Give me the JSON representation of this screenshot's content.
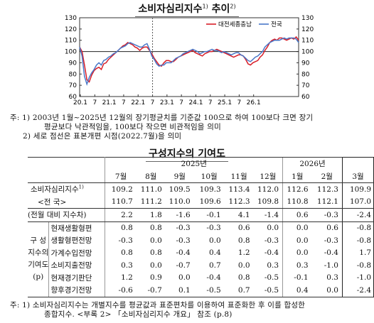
{
  "chart_title": {
    "main": "소비자심리지수",
    "sup1": "1)",
    "tail": " 추이",
    "sup2": "2)"
  },
  "chart_data": {
    "type": "line",
    "ylim": [
      60,
      130
    ],
    "yticks": [
      60,
      70,
      80,
      90,
      100,
      110,
      120,
      130
    ],
    "reference_line": 100,
    "vertical_marker": "22.7",
    "x_tick_labels": [
      "20.1",
      "7",
      "21.1",
      "7",
      "22.1",
      "7",
      "23.1",
      "7",
      "24.1",
      "7",
      "25.1",
      "7",
      "26.1"
    ],
    "series": [
      {
        "name": "대전세종충남",
        "color": "#d81e28",
        "values": [
          104,
          100,
          88,
          75,
          73,
          79,
          83,
          85,
          86,
          84,
          89,
          90,
          93,
          95,
          97,
          99,
          101,
          103,
          105,
          106,
          108,
          107,
          106,
          104,
          103,
          101,
          103,
          104,
          104,
          101,
          98,
          94,
          91,
          88,
          87,
          90,
          92,
          92,
          91,
          91,
          93,
          95,
          96,
          97,
          98,
          99,
          100,
          101,
          99,
          98,
          97,
          96,
          98,
          99,
          100,
          100,
          101,
          102,
          101,
          100,
          99,
          98,
          97,
          96,
          95,
          96,
          97,
          97,
          96,
          93,
          89,
          88,
          90,
          91,
          92,
          95,
          97,
          101,
          104,
          108,
          110,
          111,
          110,
          112,
          112,
          111,
          110,
          111,
          112,
          111,
          113,
          110
        ]
      },
      {
        "name": "전국",
        "color": "#4a78c8",
        "values": [
          104,
          96,
          78,
          71,
          77,
          81,
          84,
          88,
          90,
          88,
          92,
          93,
          95,
          96,
          98,
          99,
          101,
          103,
          104,
          105,
          107,
          108,
          107,
          106,
          105,
          104,
          104,
          106,
          107,
          102,
          96,
          93,
          89,
          87,
          88,
          88,
          90,
          90,
          90,
          92,
          94,
          95,
          96,
          98,
          99,
          100,
          101,
          102,
          101,
          100,
          98,
          99,
          100,
          100,
          101,
          102,
          101,
          101,
          100,
          99,
          100,
          99,
          98,
          97,
          98,
          99,
          99,
          97,
          96,
          94,
          92,
          91,
          93,
          95,
          96,
          98,
          100,
          104,
          106,
          108,
          109,
          110,
          110,
          110,
          111,
          112,
          111,
          112,
          112,
          112,
          111,
          108
        ]
      }
    ]
  },
  "notes": {
    "n1a": "주: 1) 2003년 1월~2025년 12월의 장기평균치를 기준값 100으로 하여 100보다 크면 장기",
    "n1b": "평균보다 낙관적임을, 100보다 작으면 비관적임을 의미",
    "n2": "2) 세로 점선은 표본개편 시점(2022.7월)을 의미"
  },
  "table_title": "구성지수의 기여도",
  "table": {
    "year1": "2025년",
    "year2": "2026년",
    "months": [
      "7월",
      "8월",
      "9월",
      "10월",
      "11월",
      "12월",
      "1월",
      "2월",
      "3월"
    ],
    "csi_label": "소비자심리지수",
    "csi_sup": "1)",
    "region_label": "<전   국>",
    "regional_values": [
      "109.2",
      "111.0",
      "109.5",
      "109.3",
      "113.4",
      "112.0",
      "112.6",
      "112.3",
      "109.9"
    ],
    "national_values": [
      "110.7",
      "111.2",
      "110.0",
      "109.6",
      "112.3",
      "109.8",
      "110.8",
      "112.1",
      "107.0"
    ],
    "change_label": "(전월 대비 지수차)",
    "change_values": [
      "2.2",
      "1.8",
      "-1.6",
      "-0.1",
      "4.1",
      "-1.4",
      "0.6",
      "-0.3",
      "-2.4"
    ],
    "side_label": [
      "구  성",
      "지수의",
      "기여도",
      "(p)"
    ],
    "components": [
      {
        "label": "현재생활형편",
        "values": [
          "0.8",
          "0.8",
          "-0.3",
          "-0.3",
          "0.6",
          "0.0",
          "0.0",
          "0.6",
          "-0.8"
        ]
      },
      {
        "label": "생활형편전망",
        "values": [
          "-0.3",
          "0.0",
          "-0.3",
          "0.0",
          "0.8",
          "-0.3",
          "0.0",
          "-0.3",
          "-0.8"
        ]
      },
      {
        "label": "가계수입전망",
        "values": [
          "0.8",
          "0.8",
          "-0.4",
          "0.4",
          "1.2",
          "-0.4",
          "0.0",
          "-0.4",
          "1.7"
        ]
      },
      {
        "label": "소비지출전망",
        "values": [
          "0.3",
          "0.0",
          "-0.7",
          "0.7",
          "0.0",
          "0.3",
          "0.3",
          "-1.0",
          "-0.8"
        ]
      },
      {
        "label": "현재경기판단",
        "values": [
          "1.2",
          "0.9",
          "0.0",
          "-0.4",
          "0.8",
          "-0.5",
          "-0.1",
          "0.3",
          "-1.0"
        ]
      },
      {
        "label": "향후경기전망",
        "values": [
          "-0.6",
          "-0.7",
          "0.1",
          "-0.5",
          "0.7",
          "-0.5",
          "0.4",
          "0.0",
          "-2.4"
        ]
      }
    ]
  },
  "bottom_note": {
    "a": "주: 1) 소비자심리지수는 개별지수를 평균값과 표준편차를 이용하여 표준화한 후 이를 합성한",
    "b": "종합지수. <부록 2> 「소비자심리지수 개요」 참조 (p.8)"
  }
}
